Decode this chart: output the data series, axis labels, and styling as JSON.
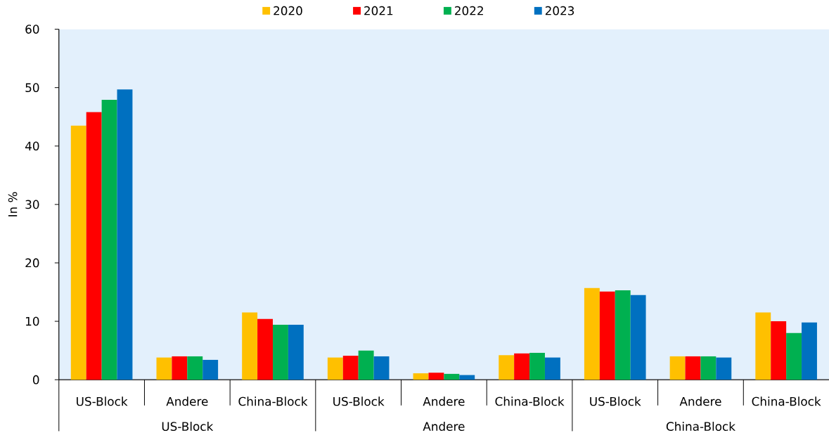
{
  "chart_data": {
    "type": "bar",
    "ylabel": "In %",
    "categories": [
      "US-Block",
      "Andere",
      "China-Block",
      "US-Block",
      "Andere",
      "China-Block",
      "US-Block",
      "Andere",
      "China-Block"
    ],
    "annotations": [
      "US-Block",
      "Andere",
      "China-Block"
    ],
    "series": [
      {
        "name": "2020",
        "color": "#ffc000",
        "values": [
          43.5,
          3.8,
          11.5,
          3.8,
          1.1,
          4.2,
          15.7,
          4.0,
          11.5
        ]
      },
      {
        "name": "2021",
        "color": "#ff0000",
        "values": [
          45.8,
          4.0,
          10.4,
          4.1,
          1.2,
          4.5,
          15.1,
          4.0,
          10.0
        ]
      },
      {
        "name": "2022",
        "color": "#00b050",
        "values": [
          47.9,
          4.0,
          9.4,
          5.0,
          1.0,
          4.6,
          15.3,
          4.0,
          8.0
        ]
      },
      {
        "name": "2023",
        "color": "#0070c0",
        "values": [
          49.7,
          3.4,
          9.4,
          4.0,
          0.8,
          3.8,
          14.5,
          3.8,
          9.8
        ]
      }
    ],
    "ylim": [
      0,
      60
    ],
    "yticks": [
      0,
      10,
      20,
      30,
      40,
      50,
      60
    ],
    "legend": "top"
  }
}
